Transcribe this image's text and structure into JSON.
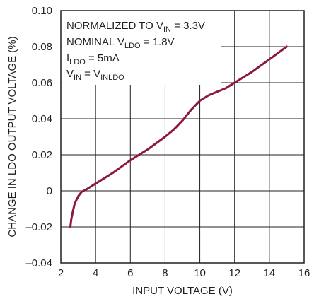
{
  "chart_data": {
    "type": "line",
    "xlabel": "INPUT VOLTAGE (V)",
    "ylabel": "CHANGE IN LDO OUTPUT VOLTAGE (%)",
    "xlim": [
      2,
      16
    ],
    "ylim": [
      -0.04,
      0.1
    ],
    "x_ticks": [
      2,
      4,
      6,
      8,
      10,
      12,
      14,
      16
    ],
    "y_ticks": [
      -0.04,
      -0.02,
      0,
      0.02,
      0.04,
      0.06,
      0.08,
      0.1
    ],
    "x_tick_labels": [
      "2",
      "4",
      "6",
      "8",
      "10",
      "12",
      "14",
      "16"
    ],
    "y_tick_labels": [
      "–0.04",
      "–0.02",
      "0",
      "0.02",
      "0.04",
      "0.06",
      "0.08",
      "0.10"
    ],
    "grid": true,
    "line_color": "#8b1a3a",
    "annotations": [
      {
        "id": "normalized",
        "parts": [
          {
            "t": "NORMALIZED TO V"
          },
          {
            "t": "IN",
            "sub": true
          },
          {
            "t": " = 3.3V"
          }
        ]
      },
      {
        "id": "nominal",
        "parts": [
          {
            "t": "NOMINAL V"
          },
          {
            "t": "LDO",
            "sub": true
          },
          {
            "t": " = 1.8V"
          }
        ]
      },
      {
        "id": "ildo",
        "parts": [
          {
            "t": "I"
          },
          {
            "t": "LDO",
            "sub": true
          },
          {
            "t": " = 5mA"
          }
        ]
      },
      {
        "id": "vin",
        "parts": [
          {
            "t": "V"
          },
          {
            "t": "IN",
            "sub": true
          },
          {
            "t": " = V"
          },
          {
            "t": "INLDO",
            "sub": true
          }
        ]
      }
    ],
    "series": [
      {
        "x": [
          2.55,
          2.6,
          2.7,
          2.8,
          3.0,
          3.2,
          3.5,
          4.0,
          5.0,
          6.0,
          7.0,
          8.0,
          8.5,
          9.0,
          9.5,
          10.0,
          10.5,
          11.0,
          11.5,
          12.0,
          13.0,
          14.0,
          15.0
        ],
        "y": [
          -0.02,
          -0.016,
          -0.011,
          -0.007,
          -0.003,
          -0.0005,
          0.001,
          0.004,
          0.01,
          0.017,
          0.023,
          0.03,
          0.034,
          0.039,
          0.045,
          0.05,
          0.053,
          0.055,
          0.057,
          0.06,
          0.066,
          0.073,
          0.08
        ]
      }
    ]
  }
}
